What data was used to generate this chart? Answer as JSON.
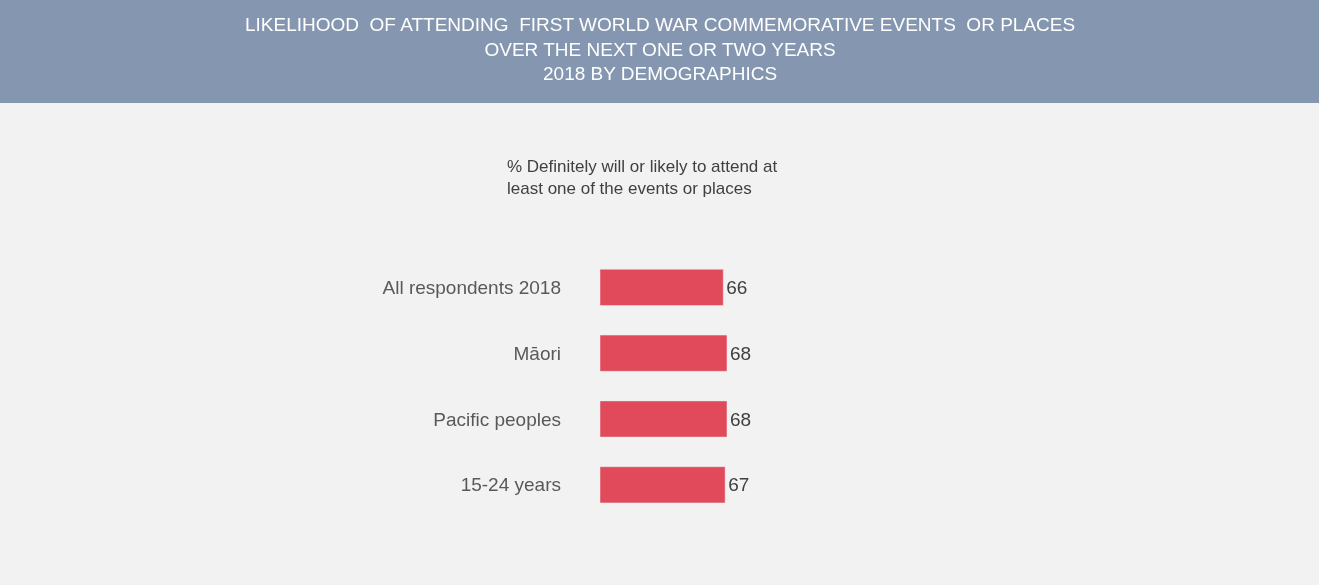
{
  "chart_data": {
    "type": "bar",
    "orientation": "horizontal",
    "title": "LIKELIHOOD  OF ATTENDING  FIRST WORLD WAR COMMEMORATIVE EVENTS  OR PLACES\nOVER THE NEXT ONE OR TWO YEARS\n2018 BY DEMOGRAPHICS",
    "subtitle": "% Definitely will or likely to attend at\nleast one of the events or places",
    "categories": [
      "All respondents 2018",
      "Māori",
      "Pacific peoples",
      "15-24 years"
    ],
    "values": [
      66,
      68,
      68,
      67
    ],
    "color": "#e04a5a",
    "data_labels": true,
    "legend": false
  }
}
